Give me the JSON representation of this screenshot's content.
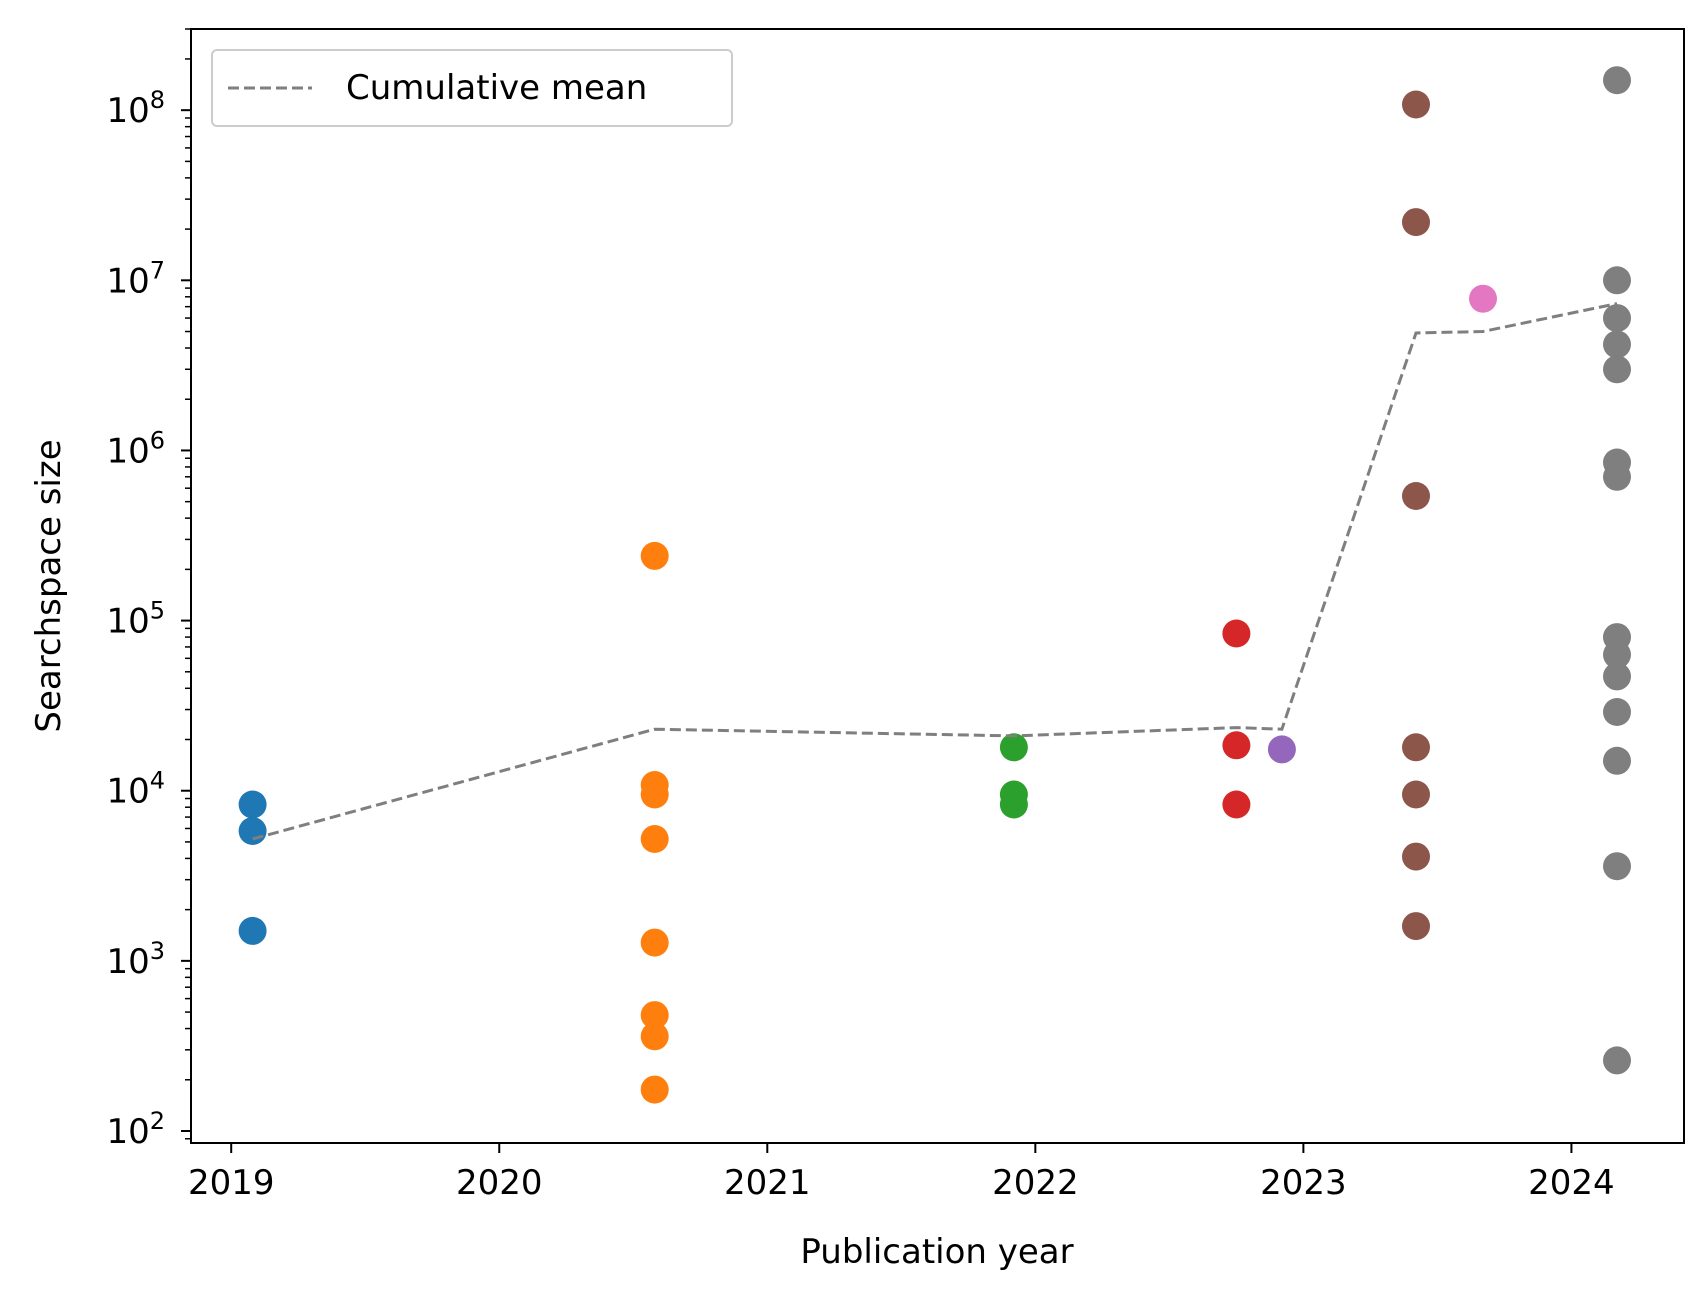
{
  "chart_data": {
    "type": "scatter",
    "xlabel": "Publication year",
    "ylabel": "Searchspace size",
    "xlim": [
      2018.85,
      2024.42
    ],
    "ylim": [
      85,
      300000000
    ],
    "yscale": "log",
    "x_ticks": [
      2019,
      2020,
      2021,
      2022,
      2023,
      2024
    ],
    "x_tick_labels": [
      "2019",
      "2020",
      "2021",
      "2022",
      "2023",
      "2024"
    ],
    "y_ticks": [
      {
        "base": "10",
        "exp": "2",
        "value": 100
      },
      {
        "base": "10",
        "exp": "3",
        "value": 1000
      },
      {
        "base": "10",
        "exp": "4",
        "value": 10000
      },
      {
        "base": "10",
        "exp": "5",
        "value": 100000
      },
      {
        "base": "10",
        "exp": "6",
        "value": 1000000
      },
      {
        "base": "10",
        "exp": "7",
        "value": 10000000
      },
      {
        "base": "10",
        "exp": "8",
        "value": 100000000
      }
    ],
    "grid": false,
    "legend": {
      "position": "top-left",
      "entries": [
        "Cumulative mean"
      ]
    },
    "groups": [
      {
        "x": 2019.08,
        "color": "#1f77b4",
        "values": [
          8300,
          5800,
          1500
        ]
      },
      {
        "x": 2020.58,
        "color": "#ff7f0e",
        "values": [
          240000,
          10800,
          9500,
          5200,
          1280,
          480,
          360,
          175
        ]
      },
      {
        "x": 2021.92,
        "color": "#2ca02c",
        "values": [
          18000,
          9500,
          8300
        ]
      },
      {
        "x": 2022.75,
        "color": "#d62728",
        "values": [
          84000,
          18500,
          8300
        ]
      },
      {
        "x": 2022.92,
        "color": "#9467bd",
        "values": [
          17500
        ]
      },
      {
        "x": 2023.42,
        "color": "#8c564b",
        "values": [
          108000000,
          22000000,
          540000,
          18000,
          9500,
          4100,
          1600
        ]
      },
      {
        "x": 2023.67,
        "color": "#e377c2",
        "values": [
          7800000
        ]
      },
      {
        "x": 2024.17,
        "color": "#7f7f7f",
        "values": [
          150000000,
          10000000,
          6000000,
          4200000,
          3000000,
          850000,
          700000,
          80000,
          63000,
          47000,
          29000,
          15000,
          3600,
          260
        ]
      }
    ],
    "series": [
      {
        "name": "Cumulative mean",
        "color": "#7f7f7f",
        "style": "dashed",
        "x": [
          2019.08,
          2020.58,
          2021.92,
          2022.75,
          2022.92,
          2023.42,
          2023.67,
          2024.17
        ],
        "y": [
          5200,
          23000,
          21000,
          23500,
          23000,
          4900000,
          5000000,
          7300000
        ]
      }
    ]
  }
}
